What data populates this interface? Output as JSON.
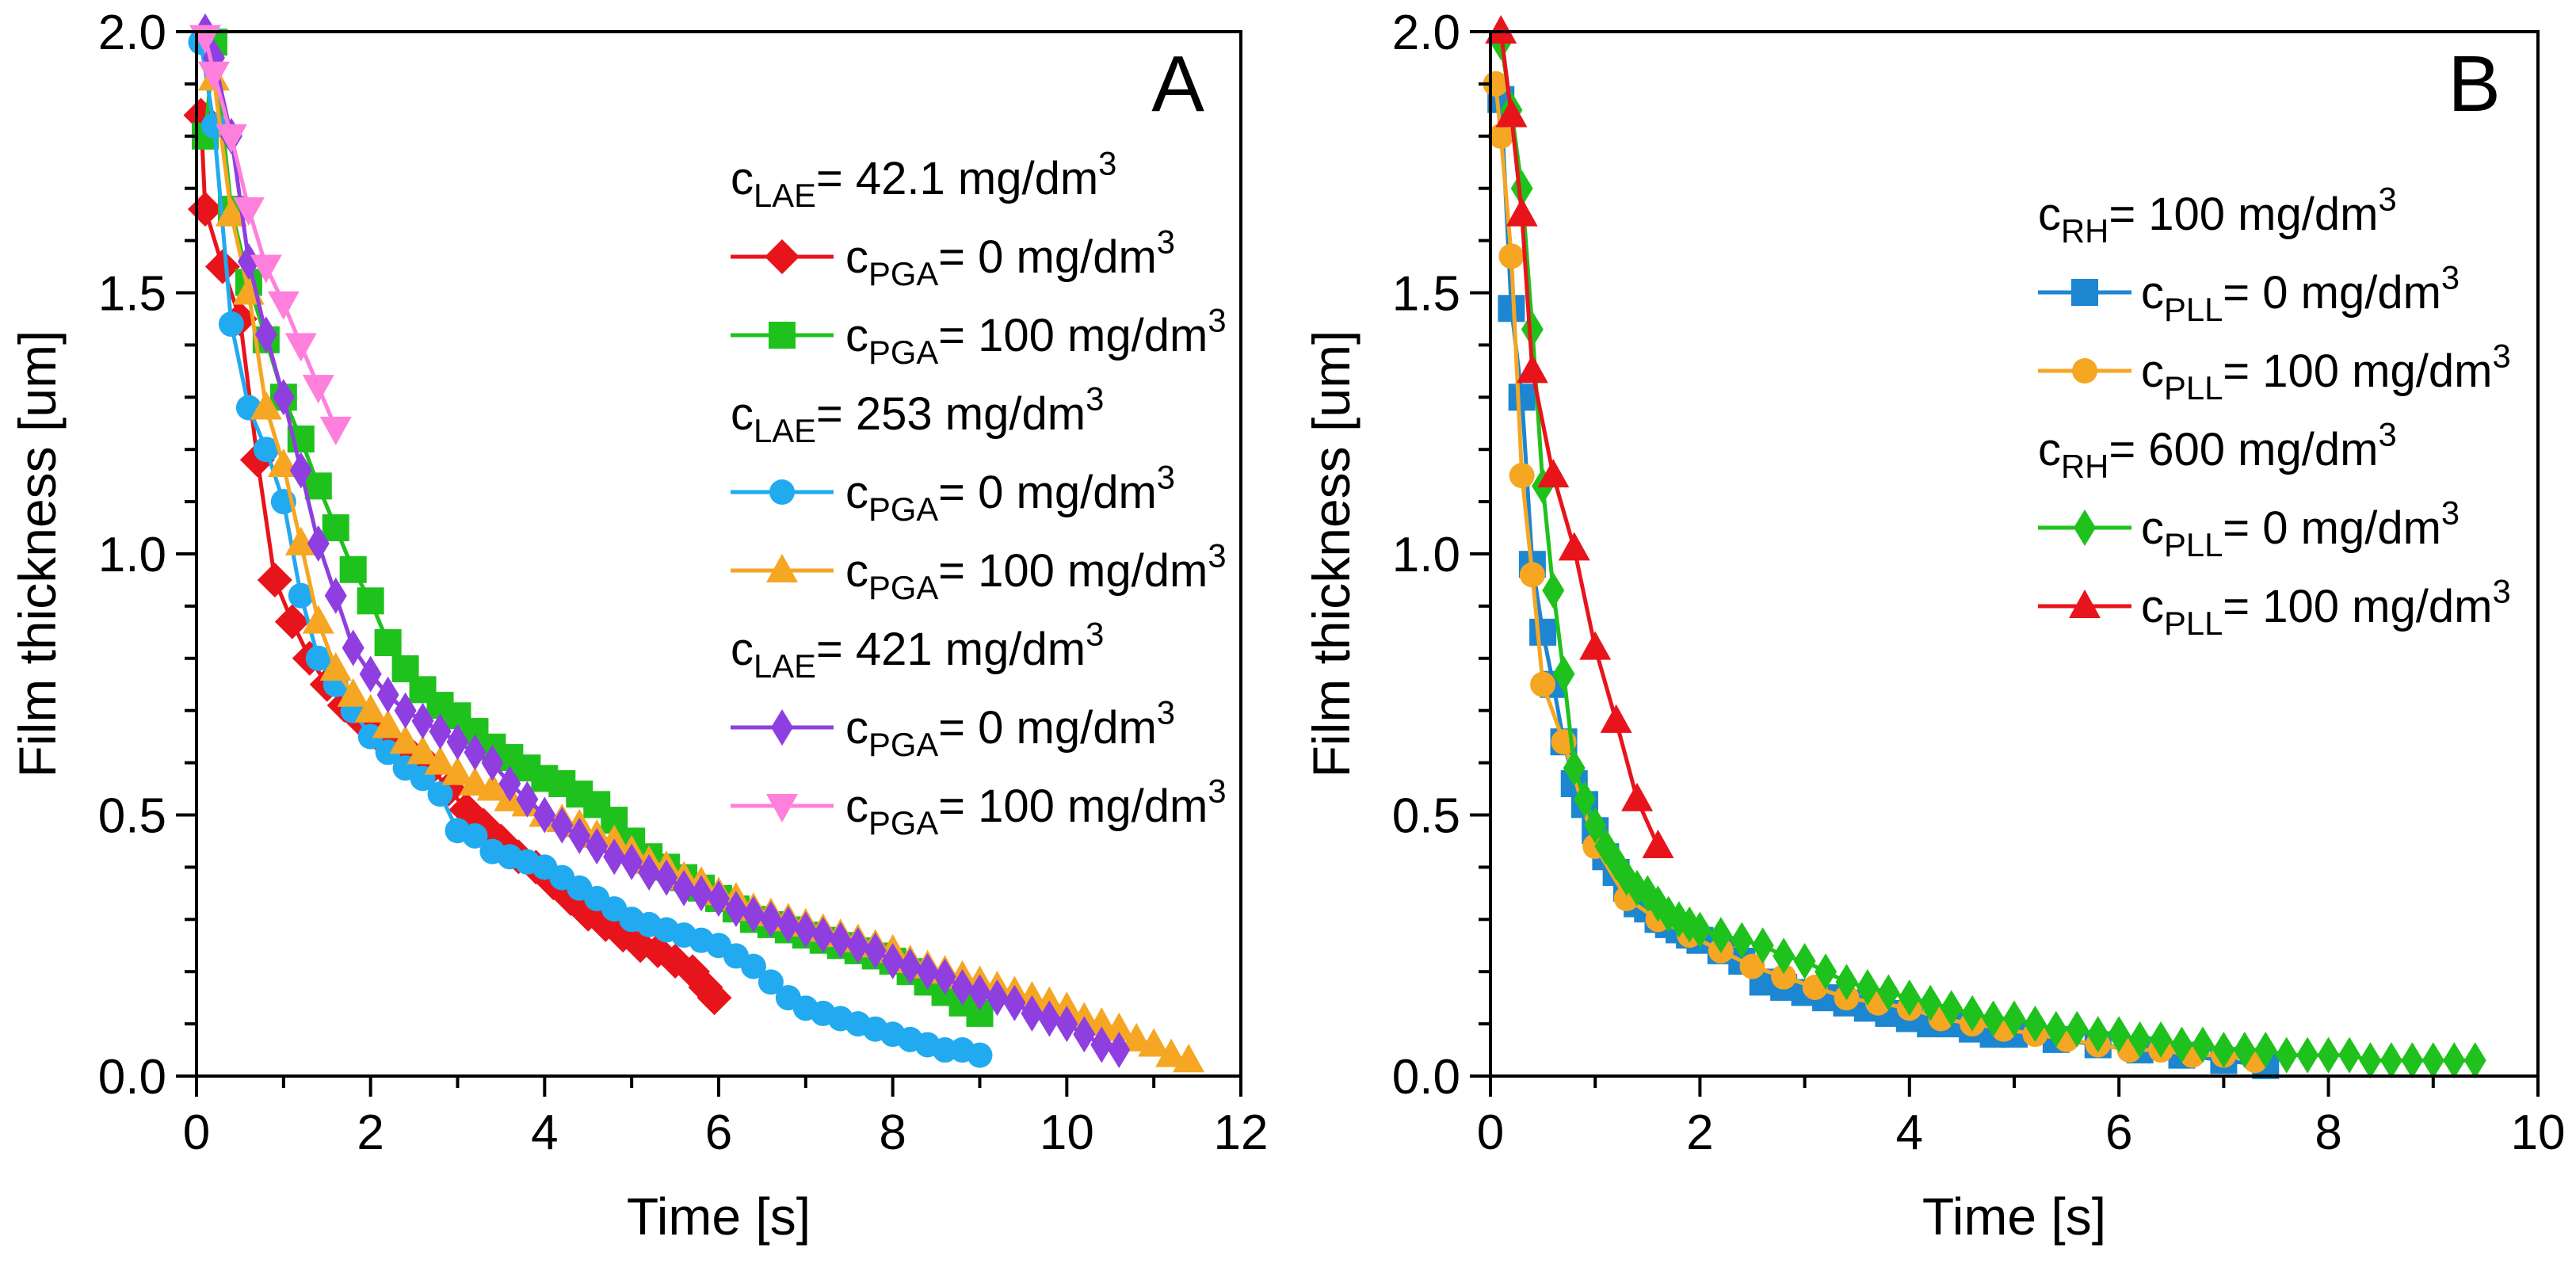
{
  "chart_data": [
    {
      "type": "line",
      "panel_label": "A",
      "xlabel": "Time [s]",
      "ylabel": "Film thickness [um]",
      "xlim": [
        0,
        12
      ],
      "ylim": [
        0,
        2.0
      ],
      "xticks": [
        0,
        2,
        4,
        6,
        8,
        10,
        12
      ],
      "yticks": [
        0.0,
        0.5,
        1.0,
        1.5,
        2.0
      ],
      "xtick_labels": [
        "0",
        "2",
        "4",
        "6",
        "8",
        "10",
        "12"
      ],
      "ytick_labels": [
        "0.0",
        "0.5",
        "1.0",
        "1.5",
        "2.0"
      ],
      "legend_groups": [
        {
          "main": "c",
          "sub": "LAE",
          "rest": "= 42.1 mg/dm",
          "sup": "3"
        },
        {
          "main": "c",
          "sub": "LAE",
          "rest": "= 253 mg/dm",
          "sup": "3"
        },
        {
          "main": "c",
          "sub": "LAE",
          "rest": "= 421 mg/dm",
          "sup": "3"
        }
      ],
      "series": [
        {
          "name": "cPGA= 0 mg/dm3",
          "group": 0,
          "color": "#e8141c",
          "marker": "diamond",
          "legend": {
            "main": "c",
            "sub": "PGA",
            "rest": "= 0 mg/dm",
            "sup": "3"
          },
          "x": [
            0.05,
            0.1,
            0.3,
            0.5,
            0.7,
            0.9,
            1.1,
            1.3,
            1.5,
            1.7,
            1.9,
            2.1,
            2.3,
            2.5,
            2.7,
            2.9,
            3.1,
            3.3,
            3.5,
            3.7,
            3.9,
            4.1,
            4.3,
            4.5,
            4.7,
            4.9,
            5.1,
            5.3,
            5.5,
            5.7,
            5.85,
            5.95
          ],
          "y": [
            1.84,
            1.66,
            1.55,
            1.45,
            1.18,
            0.95,
            0.87,
            0.8,
            0.75,
            0.71,
            0.68,
            0.65,
            0.63,
            0.61,
            0.59,
            0.55,
            0.51,
            0.48,
            0.45,
            0.42,
            0.4,
            0.37,
            0.34,
            0.31,
            0.29,
            0.27,
            0.25,
            0.24,
            0.22,
            0.2,
            0.17,
            0.15
          ]
        },
        {
          "name": "cPGA= 100 mg/dm3",
          "group": 0,
          "color": "#1fc21c",
          "marker": "square",
          "legend": {
            "main": "c",
            "sub": "PGA",
            "rest": "= 100 mg/dm",
            "sup": "3"
          },
          "x": [
            0.1,
            0.2,
            0.4,
            0.6,
            0.8,
            1.0,
            1.2,
            1.4,
            1.6,
            1.8,
            2.0,
            2.2,
            2.4,
            2.6,
            2.8,
            3.0,
            3.2,
            3.4,
            3.6,
            3.8,
            4.0,
            4.2,
            4.4,
            4.6,
            4.8,
            5.0,
            5.2,
            5.4,
            5.6,
            5.8,
            6.0,
            6.2,
            6.4,
            6.6,
            6.8,
            7.0,
            7.2,
            7.4,
            7.6,
            7.8,
            8.0,
            8.2,
            8.4,
            8.6,
            8.8,
            9.0
          ],
          "y": [
            1.8,
            1.98,
            1.66,
            1.52,
            1.41,
            1.3,
            1.22,
            1.13,
            1.05,
            0.97,
            0.91,
            0.83,
            0.78,
            0.74,
            0.71,
            0.69,
            0.66,
            0.63,
            0.61,
            0.59,
            0.57,
            0.56,
            0.54,
            0.52,
            0.49,
            0.45,
            0.42,
            0.4,
            0.38,
            0.36,
            0.34,
            0.32,
            0.3,
            0.29,
            0.28,
            0.27,
            0.26,
            0.25,
            0.24,
            0.23,
            0.22,
            0.2,
            0.18,
            0.16,
            0.14,
            0.12
          ]
        },
        {
          "name": "cPGA= 0 mg/dm3",
          "group": 1,
          "color": "#21aaf0",
          "marker": "circle",
          "legend": {
            "main": "c",
            "sub": "PGA",
            "rest": "= 0 mg/dm",
            "sup": "3"
          },
          "x": [
            0.05,
            0.2,
            0.4,
            0.6,
            0.8,
            1.0,
            1.2,
            1.4,
            1.6,
            1.8,
            2.0,
            2.2,
            2.4,
            2.6,
            2.8,
            3.0,
            3.2,
            3.4,
            3.6,
            3.8,
            4.0,
            4.2,
            4.4,
            4.6,
            4.8,
            5.0,
            5.2,
            5.4,
            5.6,
            5.8,
            6.0,
            6.2,
            6.4,
            6.6,
            6.8,
            7.0,
            7.2,
            7.4,
            7.6,
            7.8,
            8.0,
            8.2,
            8.4,
            8.6,
            8.8,
            9.0
          ],
          "y": [
            1.98,
            1.82,
            1.44,
            1.28,
            1.2,
            1.1,
            0.92,
            0.8,
            0.75,
            0.7,
            0.65,
            0.62,
            0.59,
            0.57,
            0.54,
            0.47,
            0.46,
            0.43,
            0.42,
            0.41,
            0.4,
            0.38,
            0.36,
            0.34,
            0.32,
            0.3,
            0.29,
            0.28,
            0.27,
            0.26,
            0.25,
            0.23,
            0.21,
            0.18,
            0.15,
            0.13,
            0.12,
            0.11,
            0.1,
            0.09,
            0.08,
            0.07,
            0.06,
            0.05,
            0.05,
            0.04
          ]
        },
        {
          "name": "cPGA= 100 mg/dm3",
          "group": 1,
          "color": "#f5a623",
          "marker": "triangle",
          "legend": {
            "main": "c",
            "sub": "PGA",
            "rest": "= 100 mg/dm",
            "sup": "3"
          },
          "x": [
            0.2,
            0.4,
            0.6,
            0.8,
            1.0,
            1.2,
            1.4,
            1.6,
            1.8,
            2.0,
            2.2,
            2.4,
            2.6,
            2.8,
            3.0,
            3.2,
            3.4,
            3.6,
            3.8,
            4.0,
            4.2,
            4.4,
            4.6,
            4.8,
            5.0,
            5.2,
            5.4,
            5.6,
            5.8,
            6.0,
            6.2,
            6.4,
            6.6,
            6.8,
            7.0,
            7.2,
            7.4,
            7.6,
            7.8,
            8.0,
            8.2,
            8.4,
            8.6,
            8.8,
            9.0,
            9.2,
            9.4,
            9.6,
            9.8,
            10.0,
            10.2,
            10.4,
            10.6,
            10.8,
            11.0,
            11.2,
            11.4
          ],
          "y": [
            1.91,
            1.65,
            1.5,
            1.28,
            1.17,
            1.02,
            0.87,
            0.78,
            0.73,
            0.7,
            0.67,
            0.64,
            0.62,
            0.6,
            0.58,
            0.56,
            0.55,
            0.53,
            0.52,
            0.5,
            0.49,
            0.48,
            0.46,
            0.45,
            0.43,
            0.41,
            0.4,
            0.38,
            0.37,
            0.35,
            0.34,
            0.32,
            0.31,
            0.3,
            0.29,
            0.28,
            0.27,
            0.26,
            0.25,
            0.24,
            0.22,
            0.21,
            0.2,
            0.19,
            0.18,
            0.17,
            0.16,
            0.15,
            0.14,
            0.13,
            0.11,
            0.1,
            0.09,
            0.07,
            0.06,
            0.04,
            0.03
          ]
        },
        {
          "name": "cPGA= 0 mg/dm3",
          "group": 2,
          "color": "#8f3fe0",
          "marker": "thin-diamond",
          "legend": {
            "main": "c",
            "sub": "PGA",
            "rest": "= 0 mg/dm",
            "sup": "3"
          },
          "x": [
            0.1,
            0.2,
            0.4,
            0.6,
            0.8,
            1.0,
            1.2,
            1.4,
            1.6,
            1.8,
            2.0,
            2.2,
            2.4,
            2.6,
            2.8,
            3.0,
            3.2,
            3.4,
            3.6,
            3.8,
            4.0,
            4.2,
            4.4,
            4.6,
            4.8,
            5.0,
            5.2,
            5.4,
            5.6,
            5.8,
            6.0,
            6.2,
            6.4,
            6.6,
            6.8,
            7.0,
            7.2,
            7.4,
            7.6,
            7.8,
            8.0,
            8.2,
            8.4,
            8.6,
            8.8,
            9.0,
            9.2,
            9.4,
            9.6,
            9.8,
            10.0,
            10.2,
            10.4,
            10.6
          ],
          "y": [
            2.0,
            1.95,
            1.8,
            1.56,
            1.42,
            1.3,
            1.16,
            1.02,
            0.92,
            0.82,
            0.77,
            0.73,
            0.7,
            0.68,
            0.66,
            0.64,
            0.62,
            0.6,
            0.56,
            0.53,
            0.5,
            0.48,
            0.46,
            0.44,
            0.42,
            0.41,
            0.39,
            0.38,
            0.36,
            0.35,
            0.34,
            0.32,
            0.31,
            0.3,
            0.29,
            0.28,
            0.27,
            0.26,
            0.25,
            0.24,
            0.22,
            0.21,
            0.2,
            0.19,
            0.17,
            0.16,
            0.15,
            0.14,
            0.12,
            0.11,
            0.1,
            0.08,
            0.06,
            0.05
          ]
        },
        {
          "name": "cPGA= 100 mg/dm3",
          "group": 2,
          "color": "#ff7fdd",
          "marker": "triangle-down",
          "legend": {
            "main": "c",
            "sub": "PGA",
            "rest": "= 100 mg/dm",
            "sup": "3"
          },
          "x": [
            0.1,
            0.2,
            0.4,
            0.6,
            0.8,
            1.0,
            1.2,
            1.4,
            1.6
          ],
          "y": [
            1.99,
            1.92,
            1.8,
            1.66,
            1.55,
            1.48,
            1.4,
            1.32,
            1.24
          ]
        }
      ]
    },
    {
      "type": "line",
      "panel_label": "B",
      "xlabel": "Time [s]",
      "ylabel": "Film thickness [um]",
      "xlim": [
        0,
        10
      ],
      "ylim": [
        0,
        2.0
      ],
      "xticks": [
        0,
        2,
        4,
        6,
        8,
        10
      ],
      "yticks": [
        0.0,
        0.5,
        1.0,
        1.5,
        2.0
      ],
      "xtick_labels": [
        "0",
        "2",
        "4",
        "6",
        "8",
        "10"
      ],
      "ytick_labels": [
        "0.0",
        "0.5",
        "1.0",
        "1.5",
        "2.0"
      ],
      "legend_groups": [
        {
          "main": "c",
          "sub": "RH",
          "rest": "= 100 mg/dm",
          "sup": "3"
        },
        {
          "main": "c",
          "sub": "RH",
          "rest": "= 600 mg/dm",
          "sup": "3"
        }
      ],
      "series": [
        {
          "name": "cPLL= 0 mg/dm3",
          "group": 0,
          "color": "#1c86d0",
          "marker": "square",
          "legend": {
            "main": "c",
            "sub": "PLL",
            "rest": "= 0 mg/dm",
            "sup": "3"
          },
          "x": [
            0.1,
            0.2,
            0.3,
            0.4,
            0.5,
            0.6,
            0.7,
            0.8,
            0.9,
            1.0,
            1.1,
            1.2,
            1.3,
            1.4,
            1.5,
            1.6,
            1.7,
            1.8,
            1.9,
            2.0,
            2.2,
            2.4,
            2.6,
            2.8,
            3.0,
            3.2,
            3.4,
            3.6,
            3.8,
            4.0,
            4.2,
            4.4,
            4.6,
            4.8,
            5.0,
            5.4,
            5.8,
            6.2,
            6.6,
            7.0,
            7.4
          ],
          "y": [
            1.87,
            1.47,
            1.3,
            0.98,
            0.85,
            0.75,
            0.64,
            0.56,
            0.52,
            0.47,
            0.42,
            0.39,
            0.36,
            0.33,
            0.32,
            0.3,
            0.29,
            0.28,
            0.27,
            0.26,
            0.24,
            0.22,
            0.18,
            0.17,
            0.16,
            0.15,
            0.14,
            0.13,
            0.12,
            0.11,
            0.1,
            0.1,
            0.09,
            0.08,
            0.08,
            0.07,
            0.06,
            0.05,
            0.04,
            0.03,
            0.02
          ]
        },
        {
          "name": "cPLL= 100 mg/dm3",
          "group": 0,
          "color": "#f5a623",
          "marker": "circle",
          "legend": {
            "main": "c",
            "sub": "PLL",
            "rest": "= 100 mg/dm",
            "sup": "3"
          },
          "x": [
            0.05,
            0.1,
            0.2,
            0.3,
            0.4,
            0.5,
            0.7,
            1.0,
            1.3,
            1.6,
            1.9,
            2.2,
            2.5,
            2.8,
            3.1,
            3.4,
            3.7,
            4.0,
            4.3,
            4.6,
            4.9,
            5.2,
            5.5,
            5.8,
            6.1,
            6.4,
            6.7,
            7.0,
            7.3
          ],
          "y": [
            1.9,
            1.8,
            1.57,
            1.15,
            0.96,
            0.75,
            0.64,
            0.44,
            0.34,
            0.3,
            0.27,
            0.24,
            0.21,
            0.19,
            0.17,
            0.15,
            0.14,
            0.13,
            0.11,
            0.1,
            0.09,
            0.08,
            0.07,
            0.06,
            0.05,
            0.05,
            0.04,
            0.04,
            0.03
          ]
        },
        {
          "name": "cPLL= 0 mg/dm3",
          "group": 1,
          "color": "#1fc21c",
          "marker": "thin-diamond",
          "legend": {
            "main": "c",
            "sub": "PLL",
            "rest": "= 0 mg/dm",
            "sup": "3"
          },
          "x": [
            0.1,
            0.2,
            0.3,
            0.4,
            0.5,
            0.6,
            0.7,
            0.8,
            0.9,
            1.0,
            1.1,
            1.2,
            1.3,
            1.4,
            1.5,
            1.6,
            1.7,
            1.8,
            1.9,
            2.0,
            2.2,
            2.4,
            2.6,
            2.8,
            3.0,
            3.2,
            3.4,
            3.6,
            3.8,
            4.0,
            4.2,
            4.4,
            4.6,
            4.8,
            5.0,
            5.2,
            5.4,
            5.6,
            5.8,
            6.0,
            6.2,
            6.4,
            6.6,
            6.8,
            7.0,
            7.2,
            7.4,
            7.6,
            7.8,
            8.0,
            8.2,
            8.4,
            8.6,
            8.8,
            9.0,
            9.2,
            9.4
          ],
          "y": [
            1.98,
            1.85,
            1.7,
            1.43,
            1.13,
            0.93,
            0.77,
            0.59,
            0.53,
            0.48,
            0.44,
            0.41,
            0.38,
            0.36,
            0.35,
            0.33,
            0.31,
            0.3,
            0.29,
            0.28,
            0.27,
            0.26,
            0.25,
            0.23,
            0.22,
            0.2,
            0.18,
            0.17,
            0.16,
            0.15,
            0.14,
            0.13,
            0.12,
            0.11,
            0.11,
            0.1,
            0.09,
            0.09,
            0.08,
            0.08,
            0.07,
            0.07,
            0.06,
            0.06,
            0.05,
            0.05,
            0.05,
            0.04,
            0.04,
            0.04,
            0.04,
            0.03,
            0.03,
            0.03,
            0.03,
            0.03,
            0.03
          ]
        },
        {
          "name": "cPLL= 100 mg/dm3",
          "group": 1,
          "color": "#e8141c",
          "marker": "triangle",
          "legend": {
            "main": "c",
            "sub": "PLL",
            "rest": "= 100 mg/dm",
            "sup": "3"
          },
          "x": [
            0.1,
            0.2,
            0.3,
            0.4,
            0.6,
            0.8,
            1.0,
            1.2,
            1.4,
            1.6
          ],
          "y": [
            2.0,
            1.84,
            1.65,
            1.35,
            1.15,
            1.01,
            0.82,
            0.68,
            0.53,
            0.44
          ]
        }
      ]
    }
  ]
}
